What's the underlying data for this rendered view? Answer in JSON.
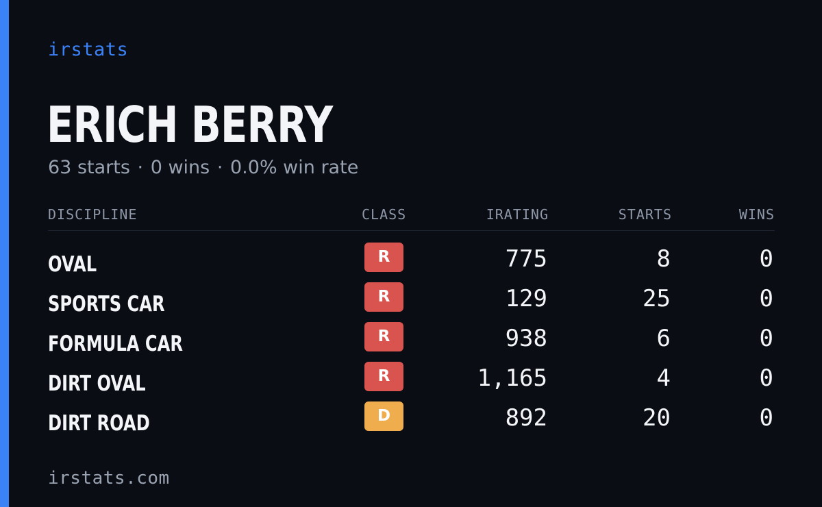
{
  "brand": {
    "name": "irstats",
    "footer_site": "irstats.com"
  },
  "driver": {
    "name": "ERICH BERRY",
    "starts_text": "63 starts",
    "wins_text": "0 wins",
    "win_rate_text": "0.0% win rate",
    "separator": "·"
  },
  "table": {
    "headers": {
      "discipline": "DISCIPLINE",
      "class": "CLASS",
      "irating": "IRATING",
      "starts": "STARTS",
      "wins": "WINS"
    },
    "rows": [
      {
        "discipline": "OVAL",
        "class": "R",
        "irating": "775",
        "starts": "8",
        "wins": "0"
      },
      {
        "discipline": "SPORTS CAR",
        "class": "R",
        "irating": "129",
        "starts": "25",
        "wins": "0"
      },
      {
        "discipline": "FORMULA CAR",
        "class": "R",
        "irating": "938",
        "starts": "6",
        "wins": "0"
      },
      {
        "discipline": "DIRT OVAL",
        "class": "R",
        "irating": "1,165",
        "starts": "4",
        "wins": "0"
      },
      {
        "discipline": "DIRT ROAD",
        "class": "D",
        "irating": "892",
        "starts": "20",
        "wins": "0"
      }
    ]
  },
  "colors": {
    "accent": "#3b82f6",
    "brand_text": "#3b82f6",
    "class_R": "#d9534f",
    "class_D": "#f0ad4e"
  }
}
